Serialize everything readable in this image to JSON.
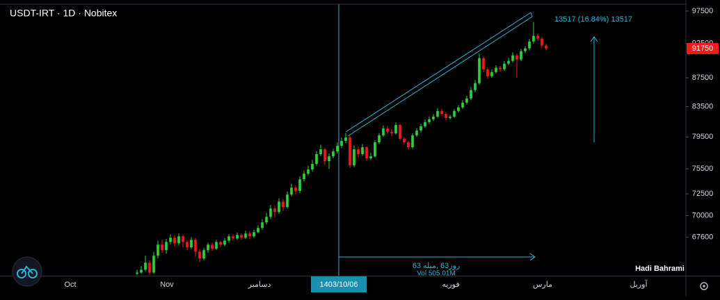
{
  "chart_data": {
    "type": "candlestick",
    "title": "USDT-IRT  · 1D · Nobitex",
    "up_color": "#2fd13a",
    "down_color": "#f21b1b",
    "log_scale": true,
    "grid": false,
    "ylim": [
      63500,
      98700
    ],
    "yticks": [
      97500,
      92500,
      87500,
      83500,
      79500,
      75500,
      72500,
      70000,
      67600
    ],
    "open": [
      63700,
      63820,
      64120,
      64850,
      63820,
      65590,
      66770,
      66180,
      67070,
      67530,
      66920,
      67680,
      67070,
      66480,
      67300,
      66030,
      65290,
      66180,
      66770,
      66330,
      67070,
      66770,
      67220,
      67680,
      67450,
      67830,
      67530,
      67990,
      67680,
      68140,
      68610,
      69230,
      69850,
      70800,
      70400,
      71600,
      70960,
      72420,
      73240,
      72830,
      74240,
      74910,
      75420,
      76100,
      77320,
      77930,
      76450,
      77050,
      77670,
      78370,
      78990,
      79440,
      75930,
      77930,
      77320,
      78190,
      76790,
      77050,
      78820,
      79710,
      80610,
      80160,
      79980,
      81070,
      79260,
      78820,
      78190,
      79710,
      80340,
      80890,
      81440,
      81810,
      82170,
      82920,
      82540,
      81990,
      82170,
      82920,
      83390,
      84050,
      84620,
      85770,
      86740,
      90340,
      88720,
      87720,
      88320,
      88920,
      88720,
      89530,
      89930,
      90740,
      90130,
      91360,
      91770,
      92810,
      93660,
      93240,
      92180
    ],
    "high": [
      64100,
      64500,
      65600,
      65100,
      66000,
      67200,
      67300,
      67400,
      67900,
      67800,
      68000,
      67900,
      67300,
      67600,
      67500,
      66300,
      66400,
      67000,
      67000,
      67300,
      67200,
      67500,
      67900,
      67900,
      68100,
      68000,
      68300,
      68200,
      68400,
      68900,
      69600,
      70300,
      71200,
      71100,
      72000,
      71900,
      72800,
      73700,
      73500,
      74600,
      75300,
      75900,
      76600,
      77700,
      78500,
      78100,
      77400,
      78000,
      78800,
      79400,
      80000,
      79700,
      78400,
      78300,
      78600,
      78300,
      77500,
      79100,
      80000,
      81000,
      80900,
      80500,
      81400,
      81200,
      79500,
      79000,
      80000,
      80600,
      81200,
      81800,
      82200,
      82500,
      83300,
      83200,
      82800,
      82400,
      83200,
      83700,
      84400,
      85000,
      86200,
      87200,
      91000,
      90600,
      89000,
      88700,
      89300,
      89200,
      89900,
      90400,
      91200,
      91000,
      91700,
      92100,
      93200,
      95800,
      94000,
      93500,
      92400
    ],
    "low": [
      63560,
      63700,
      63950,
      63600,
      63700,
      65300,
      65900,
      65800,
      66800,
      66600,
      66700,
      66500,
      66200,
      66300,
      65500,
      64900,
      65100,
      65900,
      66100,
      66200,
      66500,
      66600,
      67000,
      67200,
      67300,
      67300,
      67400,
      67400,
      67500,
      68000,
      68400,
      69000,
      69600,
      69800,
      70200,
      70500,
      70800,
      72200,
      72400,
      72600,
      74000,
      74700,
      75200,
      75900,
      77100,
      76000,
      75500,
      76800,
      77400,
      78100,
      78700,
      75600,
      75700,
      76900,
      77100,
      76500,
      76600,
      76900,
      78600,
      79500,
      79900,
      79600,
      79800,
      79000,
      78500,
      77900,
      78000,
      79500,
      80100,
      80700,
      81200,
      81600,
      82000,
      82300,
      81700,
      81800,
      82000,
      82700,
      83200,
      83800,
      84400,
      85500,
      86500,
      88300,
      87400,
      87500,
      88100,
      88400,
      88500,
      89300,
      89700,
      87500,
      89900,
      91100,
      91500,
      92500,
      92900,
      91900,
      91500
    ],
    "close": [
      63820,
      64120,
      64850,
      63820,
      65590,
      66770,
      66180,
      67070,
      67530,
      66920,
      67680,
      67070,
      66480,
      67300,
      66030,
      65290,
      66180,
      66770,
      66330,
      67070,
      66770,
      67220,
      67680,
      67450,
      67830,
      67530,
      67990,
      67680,
      68140,
      68610,
      69230,
      69850,
      70800,
      70400,
      71600,
      70960,
      72420,
      73240,
      72830,
      74240,
      74910,
      75420,
      76100,
      77320,
      77930,
      76450,
      77050,
      77670,
      78370,
      78990,
      79440,
      75930,
      77930,
      77320,
      78190,
      76790,
      77050,
      78820,
      79710,
      80610,
      80160,
      79980,
      81070,
      79260,
      78820,
      78190,
      79710,
      80340,
      80890,
      81440,
      81810,
      82170,
      82920,
      82540,
      81990,
      82170,
      82920,
      83390,
      84050,
      84620,
      85770,
      86740,
      90340,
      88720,
      87720,
      88320,
      88920,
      88720,
      89530,
      89930,
      90740,
      90130,
      91360,
      91770,
      92810,
      93660,
      93240,
      92180,
      91750
    ],
    "x_labels": [
      "Oct",
      "Nov",
      "دسامبر",
      "1403/10/06",
      "فوریه",
      "مارس",
      "آوریل"
    ],
    "highlight": 3,
    "measure_label": "13517 (16.84%) 13517",
    "range_label": "روز63 ,میله 63",
    "volume_label": "Vol 505.01M",
    "author": "Hadi Bahrami"
  }
}
